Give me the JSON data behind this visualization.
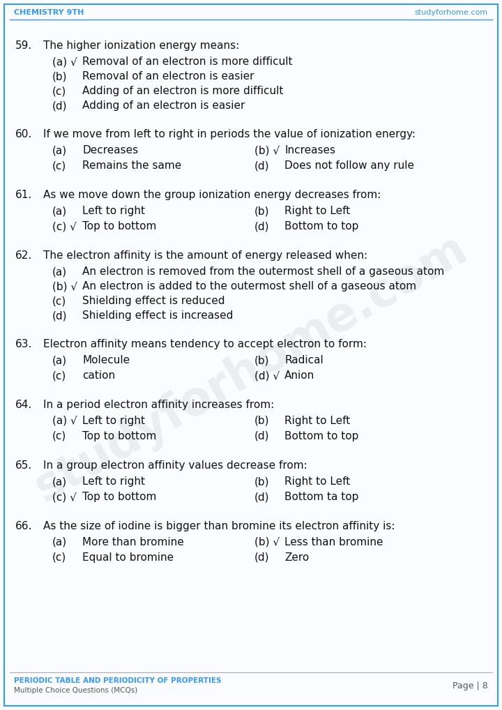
{
  "header_left": "CHEMISTRY 9TH",
  "header_right": "studyforhome.com",
  "header_color": "#3399FF",
  "footer_left_bold": "PERIODIC TABLE AND PERIODICITY OF PROPERTIES",
  "footer_left_sub": "Multiple Choice Questions (MCQs)",
  "footer_right": "Page | 8",
  "footer_color": "#3399FF",
  "bg_color": "#FAFCFF",
  "border_color": "#3399FF",
  "watermark_text": "studyforhome.com",
  "questions": [
    {
      "num": "59.",
      "question": "The higher ionization energy means:",
      "layout": "single",
      "opts": [
        {
          "label": "(a) √",
          "text": "Removal of an electron is more difficult"
        },
        {
          "label": "(b)",
          "text": "Removal of an electron is easier"
        },
        {
          "label": "(c)",
          "text": "Adding of an electron is more difficult"
        },
        {
          "label": "(d)",
          "text": "Adding of an electron is easier"
        }
      ]
    },
    {
      "num": "60.",
      "question": "If we move from left to right in periods the value of ionization energy:",
      "layout": "double",
      "opts": [
        {
          "label": "(a)",
          "text": "Decreases"
        },
        {
          "label": "(b) √",
          "text": "Increases"
        },
        {
          "label": "(c)",
          "text": "Remains the same"
        },
        {
          "label": "(d)",
          "text": "Does not follow any rule"
        }
      ]
    },
    {
      "num": "61.",
      "question": "As we move down the group ionization energy decreases from:",
      "layout": "double",
      "opts": [
        {
          "label": "(a)",
          "text": "Left to right"
        },
        {
          "label": "(b)",
          "text": "Right to Left"
        },
        {
          "label": "(c) √",
          "text": "Top to bottom"
        },
        {
          "label": "(d)",
          "text": "Bottom to top"
        }
      ]
    },
    {
      "num": "62.",
      "question": "The electron affinity is the amount of energy released when:",
      "layout": "single",
      "opts": [
        {
          "label": "(a)",
          "text": "An electron is removed from the outermost shell of a gaseous atom"
        },
        {
          "label": "(b) √",
          "text": "An electron is added to the outermost shell of a gaseous atom"
        },
        {
          "label": "(c)",
          "text": "Shielding effect is reduced"
        },
        {
          "label": "(d)",
          "text": "Shielding effect is increased"
        }
      ]
    },
    {
      "num": "63.",
      "question": "Electron affinity means tendency to accept electron to form:",
      "layout": "double",
      "opts": [
        {
          "label": "(a)",
          "text": "Molecule"
        },
        {
          "label": "(b)",
          "text": "Radical"
        },
        {
          "label": "(c)",
          "text": "cation"
        },
        {
          "label": "(d) √",
          "text": "Anion"
        }
      ]
    },
    {
      "num": "64.",
      "question": "In a period electron affinity increases from:",
      "layout": "double",
      "opts": [
        {
          "label": "(a) √",
          "text": "Left to right"
        },
        {
          "label": "(b)",
          "text": "Right to Left"
        },
        {
          "label": "(c)",
          "text": "Top to bottom"
        },
        {
          "label": "(d)",
          "text": "Bottom to top"
        }
      ]
    },
    {
      "num": "65.",
      "question": "In a group electron affinity values decrease from:",
      "layout": "double",
      "opts": [
        {
          "label": "(a)",
          "text": "Left to right"
        },
        {
          "label": "(b)",
          "text": "Right to Left"
        },
        {
          "label": "(c) √",
          "text": "Top to bottom"
        },
        {
          "label": "(d)",
          "text": "Bottom ta top"
        }
      ]
    },
    {
      "num": "66.",
      "question": "As the size of iodine is bigger than bromine its electron affinity is:",
      "layout": "double",
      "opts": [
        {
          "label": "(a)",
          "text": "More than bromine"
        },
        {
          "label": "(b) √",
          "text": "Less than bromine"
        },
        {
          "label": "(c)",
          "text": "Equal to bromine"
        },
        {
          "label": "(d)",
          "text": "Zero"
        }
      ]
    }
  ]
}
